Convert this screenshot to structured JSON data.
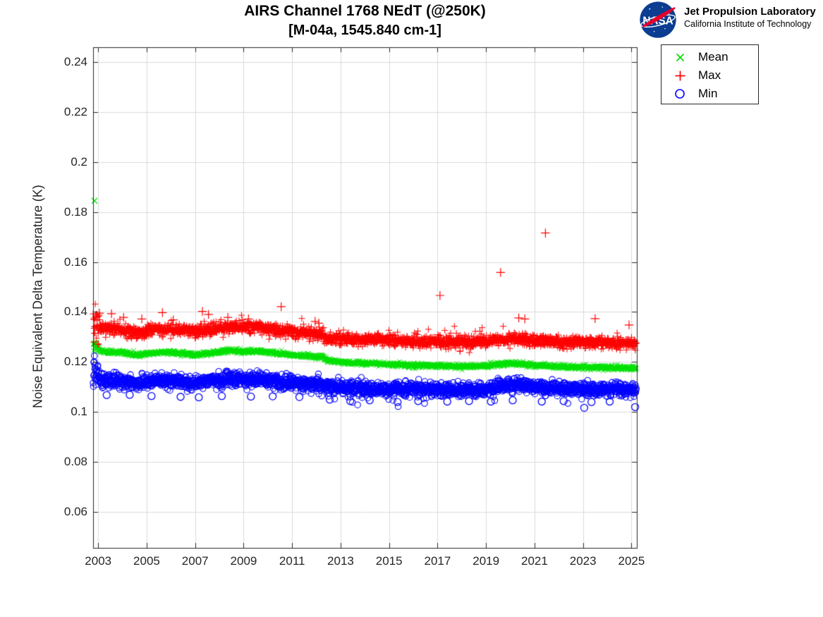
{
  "header": {
    "title_line1": "AIRS Channel 1768 NEdT (@250K)",
    "title_line2": "[M-04a, 1545.840 cm-1]"
  },
  "logo": {
    "agency": "NASA",
    "name": "Jet Propulsion Laboratory",
    "institution": "California Institute of Technology",
    "meatball_blue": "#0B3D91",
    "swoosh_red": "#E4002B"
  },
  "legend": {
    "items": [
      {
        "label": "Mean",
        "marker": "x",
        "color": "#00E000"
      },
      {
        "label": "Max",
        "marker": "+",
        "color": "#FF0000"
      },
      {
        "label": "Min",
        "marker": "o",
        "color": "#0000FF"
      }
    ]
  },
  "chart_data": {
    "type": "scatter",
    "title": "AIRS Channel 1768 NEdT (@250K) [M-04a, 1545.840 cm-1]",
    "xlabel": "",
    "ylabel": "Noise Equivalent Delta Temperature (K)",
    "xlim": [
      2002.79,
      2025.22
    ],
    "ylim": [
      0.0455,
      0.246
    ],
    "x_ticks": [
      2003,
      2005,
      2007,
      2009,
      2011,
      2013,
      2015,
      2017,
      2019,
      2021,
      2023,
      2025
    ],
    "x_tick_labels": [
      "2003",
      "2005",
      "2007",
      "2009",
      "2011",
      "2013",
      "2015",
      "2017",
      "2019",
      "2021",
      "2023",
      "2025"
    ],
    "y_ticks": [
      0.06,
      0.08,
      0.1,
      0.12,
      0.14,
      0.16,
      0.18,
      0.2,
      0.22,
      0.24
    ],
    "y_tick_labels": [
      "0.06",
      "0.08",
      "0.1",
      "0.12",
      "0.14",
      "0.16",
      "0.18",
      "0.2",
      "0.22",
      "0.24"
    ],
    "grid": true,
    "grid_color": "#DBDBDB",
    "axis_color": "#262626",
    "legend_position": "outside-top-right",
    "x_start": 2002.79,
    "x_end": 2025.2,
    "series": [
      {
        "name": "Mean",
        "marker": "x",
        "color": "#00E000",
        "points_per_year": 115,
        "jitter_sigma": 0.00045,
        "startup_sigma_mult": 2.2,
        "spike_prob": 0,
        "spike_max": 0,
        "spike_dir": 1,
        "trend": [
          [
            2002.79,
            0.1263
          ],
          [
            2002.9,
            0.1266
          ],
          [
            2003.1,
            0.1244
          ],
          [
            2003.4,
            0.1239
          ],
          [
            2004.0,
            0.1238
          ],
          [
            2004.55,
            0.1227
          ],
          [
            2005.0,
            0.1233
          ],
          [
            2005.5,
            0.1238
          ],
          [
            2006.0,
            0.1239
          ],
          [
            2006.5,
            0.1233
          ],
          [
            2007.0,
            0.1227
          ],
          [
            2007.5,
            0.1234
          ],
          [
            2008.0,
            0.1239
          ],
          [
            2008.35,
            0.1246
          ],
          [
            2009.0,
            0.1241
          ],
          [
            2009.6,
            0.1243
          ],
          [
            2010.0,
            0.1238
          ],
          [
            2010.5,
            0.1233
          ],
          [
            2011.0,
            0.1228
          ],
          [
            2011.6,
            0.1223
          ],
          [
            2012.25,
            0.1221
          ],
          [
            2012.45,
            0.1206
          ],
          [
            2013.0,
            0.1199
          ],
          [
            2014.0,
            0.1195
          ],
          [
            2015.0,
            0.119
          ],
          [
            2016.0,
            0.1186
          ],
          [
            2017.0,
            0.1184
          ],
          [
            2018.0,
            0.1182
          ],
          [
            2019.0,
            0.1184
          ],
          [
            2019.75,
            0.1194
          ],
          [
            2020.4,
            0.1193
          ],
          [
            2021.0,
            0.1186
          ],
          [
            2022.0,
            0.1181
          ],
          [
            2023.0,
            0.1179
          ],
          [
            2024.0,
            0.1177
          ],
          [
            2025.22,
            0.1175
          ]
        ],
        "outliers": [
          [
            2002.85,
            0.1845
          ]
        ]
      },
      {
        "name": "Max",
        "marker": "+",
        "color": "#FF0000",
        "points_per_year": 115,
        "jitter_sigma": 0.0012,
        "startup_sigma_mult": 2.6,
        "spike_prob": 0.02,
        "spike_max": 0.0035,
        "spike_dir": 1,
        "trend": [
          [
            2002.79,
            0.134
          ],
          [
            2002.95,
            0.1345
          ],
          [
            2003.1,
            0.1337
          ],
          [
            2003.5,
            0.1333
          ],
          [
            2004.0,
            0.133
          ],
          [
            2004.55,
            0.1315
          ],
          [
            2005.0,
            0.1322
          ],
          [
            2005.5,
            0.133
          ],
          [
            2006.0,
            0.1332
          ],
          [
            2006.5,
            0.1327
          ],
          [
            2007.0,
            0.132
          ],
          [
            2007.5,
            0.1328
          ],
          [
            2008.0,
            0.1333
          ],
          [
            2008.35,
            0.134
          ],
          [
            2009.0,
            0.1336
          ],
          [
            2009.6,
            0.134
          ],
          [
            2010.0,
            0.1332
          ],
          [
            2010.5,
            0.1326
          ],
          [
            2011.0,
            0.132
          ],
          [
            2011.6,
            0.1313
          ],
          [
            2012.25,
            0.131
          ],
          [
            2012.45,
            0.1292
          ],
          [
            2013.0,
            0.129
          ],
          [
            2014.0,
            0.1289
          ],
          [
            2015.0,
            0.1287
          ],
          [
            2016.0,
            0.1284
          ],
          [
            2017.0,
            0.1281
          ],
          [
            2018.0,
            0.1279
          ],
          [
            2019.0,
            0.1281
          ],
          [
            2019.75,
            0.1291
          ],
          [
            2020.4,
            0.1291
          ],
          [
            2021.0,
            0.1286
          ],
          [
            2022.0,
            0.1281
          ],
          [
            2023.0,
            0.1279
          ],
          [
            2024.0,
            0.1276
          ],
          [
            2025.22,
            0.1273
          ]
        ],
        "outliers": [
          [
            2003.05,
            0.1395
          ],
          [
            2003.55,
            0.1393
          ],
          [
            2004.05,
            0.1378
          ],
          [
            2004.8,
            0.1372
          ],
          [
            2005.65,
            0.1397
          ],
          [
            2006.1,
            0.1368
          ],
          [
            2007.3,
            0.1402
          ],
          [
            2007.55,
            0.139
          ],
          [
            2008.35,
            0.1378
          ],
          [
            2009.2,
            0.1372
          ],
          [
            2010.55,
            0.1421
          ],
          [
            2011.95,
            0.1362
          ],
          [
            2012.1,
            0.1355
          ],
          [
            2017.1,
            0.1466
          ],
          [
            2019.6,
            0.1558
          ],
          [
            2020.35,
            0.1376
          ],
          [
            2020.6,
            0.1372
          ],
          [
            2021.45,
            0.1716
          ],
          [
            2023.5,
            0.1373
          ],
          [
            2024.9,
            0.1348
          ]
        ]
      },
      {
        "name": "Min",
        "marker": "o",
        "color": "#0000FF",
        "points_per_year": 115,
        "jitter_sigma": 0.0013,
        "startup_sigma_mult": 2.2,
        "spike_prob": 0.02,
        "spike_max": 0.004,
        "spike_dir": -1,
        "trend": [
          [
            2002.79,
            0.1142
          ],
          [
            2002.9,
            0.1148
          ],
          [
            2003.1,
            0.1128
          ],
          [
            2003.4,
            0.1124
          ],
          [
            2004.0,
            0.1123
          ],
          [
            2004.55,
            0.1113
          ],
          [
            2005.0,
            0.112
          ],
          [
            2005.5,
            0.1126
          ],
          [
            2006.0,
            0.1126
          ],
          [
            2006.5,
            0.1121
          ],
          [
            2007.0,
            0.1114
          ],
          [
            2007.5,
            0.1122
          ],
          [
            2008.0,
            0.1127
          ],
          [
            2008.35,
            0.1133
          ],
          [
            2009.0,
            0.1129
          ],
          [
            2009.6,
            0.1131
          ],
          [
            2010.0,
            0.1126
          ],
          [
            2010.5,
            0.1121
          ],
          [
            2011.0,
            0.1115
          ],
          [
            2011.6,
            0.1112
          ],
          [
            2012.25,
            0.111
          ],
          [
            2012.45,
            0.11
          ],
          [
            2013.0,
            0.1097
          ],
          [
            2014.0,
            0.1094
          ],
          [
            2015.0,
            0.1091
          ],
          [
            2016.0,
            0.1089
          ],
          [
            2017.0,
            0.1087
          ],
          [
            2018.0,
            0.1085
          ],
          [
            2019.0,
            0.1087
          ],
          [
            2019.75,
            0.1106
          ],
          [
            2020.4,
            0.1108
          ],
          [
            2021.0,
            0.11
          ],
          [
            2021.5,
            0.1096
          ],
          [
            2022.0,
            0.1093
          ],
          [
            2023.0,
            0.1091
          ],
          [
            2024.0,
            0.1089
          ],
          [
            2025.22,
            0.1087
          ]
        ],
        "outliers": [
          [
            2003.35,
            0.1067
          ],
          [
            2004.3,
            0.1068
          ],
          [
            2005.2,
            0.1063
          ],
          [
            2006.4,
            0.106
          ],
          [
            2007.15,
            0.1058
          ],
          [
            2008.1,
            0.1063
          ],
          [
            2009.3,
            0.1061
          ],
          [
            2010.2,
            0.1062
          ],
          [
            2011.3,
            0.1059
          ],
          [
            2012.55,
            0.1049
          ],
          [
            2013.4,
            0.1043
          ],
          [
            2014.2,
            0.1046
          ],
          [
            2015.35,
            0.1039
          ],
          [
            2016.2,
            0.1043
          ],
          [
            2017.4,
            0.1041
          ],
          [
            2018.3,
            0.1043
          ],
          [
            2019.2,
            0.1041
          ],
          [
            2020.1,
            0.1046
          ],
          [
            2021.3,
            0.1041
          ],
          [
            2022.2,
            0.1043
          ],
          [
            2023.05,
            0.1016
          ],
          [
            2023.35,
            0.1039
          ],
          [
            2024.1,
            0.1041
          ],
          [
            2025.15,
            0.1019
          ]
        ]
      }
    ]
  }
}
